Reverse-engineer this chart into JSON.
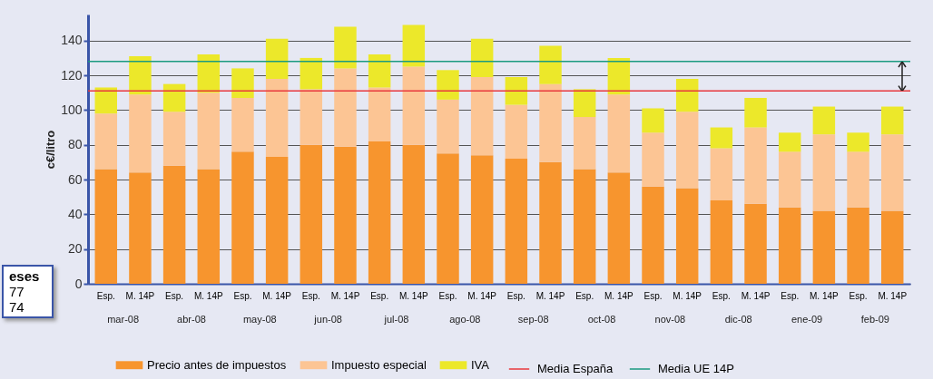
{
  "chart_data": {
    "type": "bar",
    "stacked": true,
    "ylabel": "c€/litro",
    "categories": [
      "Esp.",
      "M. 14P",
      "Esp.",
      "M. 14P",
      "Esp.",
      "M. 14P",
      "Esp.",
      "M. 14P",
      "Esp.",
      "M. 14P",
      "Esp.",
      "M. 14P",
      "Esp.",
      "M. 14P",
      "Esp.",
      "M. 14P",
      "Esp.",
      "M. 14P",
      "Esp.",
      "M. 14P",
      "Esp.",
      "M. 14P",
      "Esp.",
      "M. 14P"
    ],
    "series": [
      {
        "name": "Precio antes de impuestos",
        "color": "#f7952e",
        "values": [
          66,
          64,
          68,
          66,
          76,
          73,
          80,
          79,
          82,
          80,
          75,
          74,
          72,
          70,
          66,
          64,
          56,
          55,
          48,
          46,
          44,
          42,
          44,
          42
        ]
      },
      {
        "name": "Impuesto especial",
        "color": "#fcc594",
        "values": [
          32,
          45,
          31,
          44,
          31,
          45,
          32,
          45,
          31,
          45,
          31,
          45,
          31,
          45,
          30,
          45,
          31,
          44,
          30,
          44,
          32,
          44,
          32,
          44
        ]
      },
      {
        "name": "IVA",
        "color": "#ece82a",
        "values": [
          15,
          22,
          16,
          22,
          17,
          23,
          18,
          24,
          19,
          24,
          17,
          22,
          16,
          22,
          16,
          21,
          14,
          19,
          12,
          17,
          11,
          16,
          11,
          16
        ]
      }
    ],
    "ref_lines": [
      {
        "axis": "y",
        "value": 111,
        "label": "Media España",
        "color": "#e8383d"
      },
      {
        "axis": "y",
        "value": 128,
        "label": "Media UE 14P",
        "color": "#1a9a80"
      }
    ],
    "annotations": [
      "mar-08",
      "abr-08",
      "may-08",
      "jun-08",
      "jul-08",
      "ago-08",
      "sep-08",
      "oct-08",
      "nov-08",
      "dic-08",
      "ene-09",
      "feb-09",
      "eses",
      "77",
      "74"
    ],
    "ylim": [
      0,
      155
    ],
    "yticks": [
      0,
      20,
      40,
      60,
      80,
      100,
      120,
      140
    ],
    "grid": "y",
    "legend": "bottom"
  }
}
